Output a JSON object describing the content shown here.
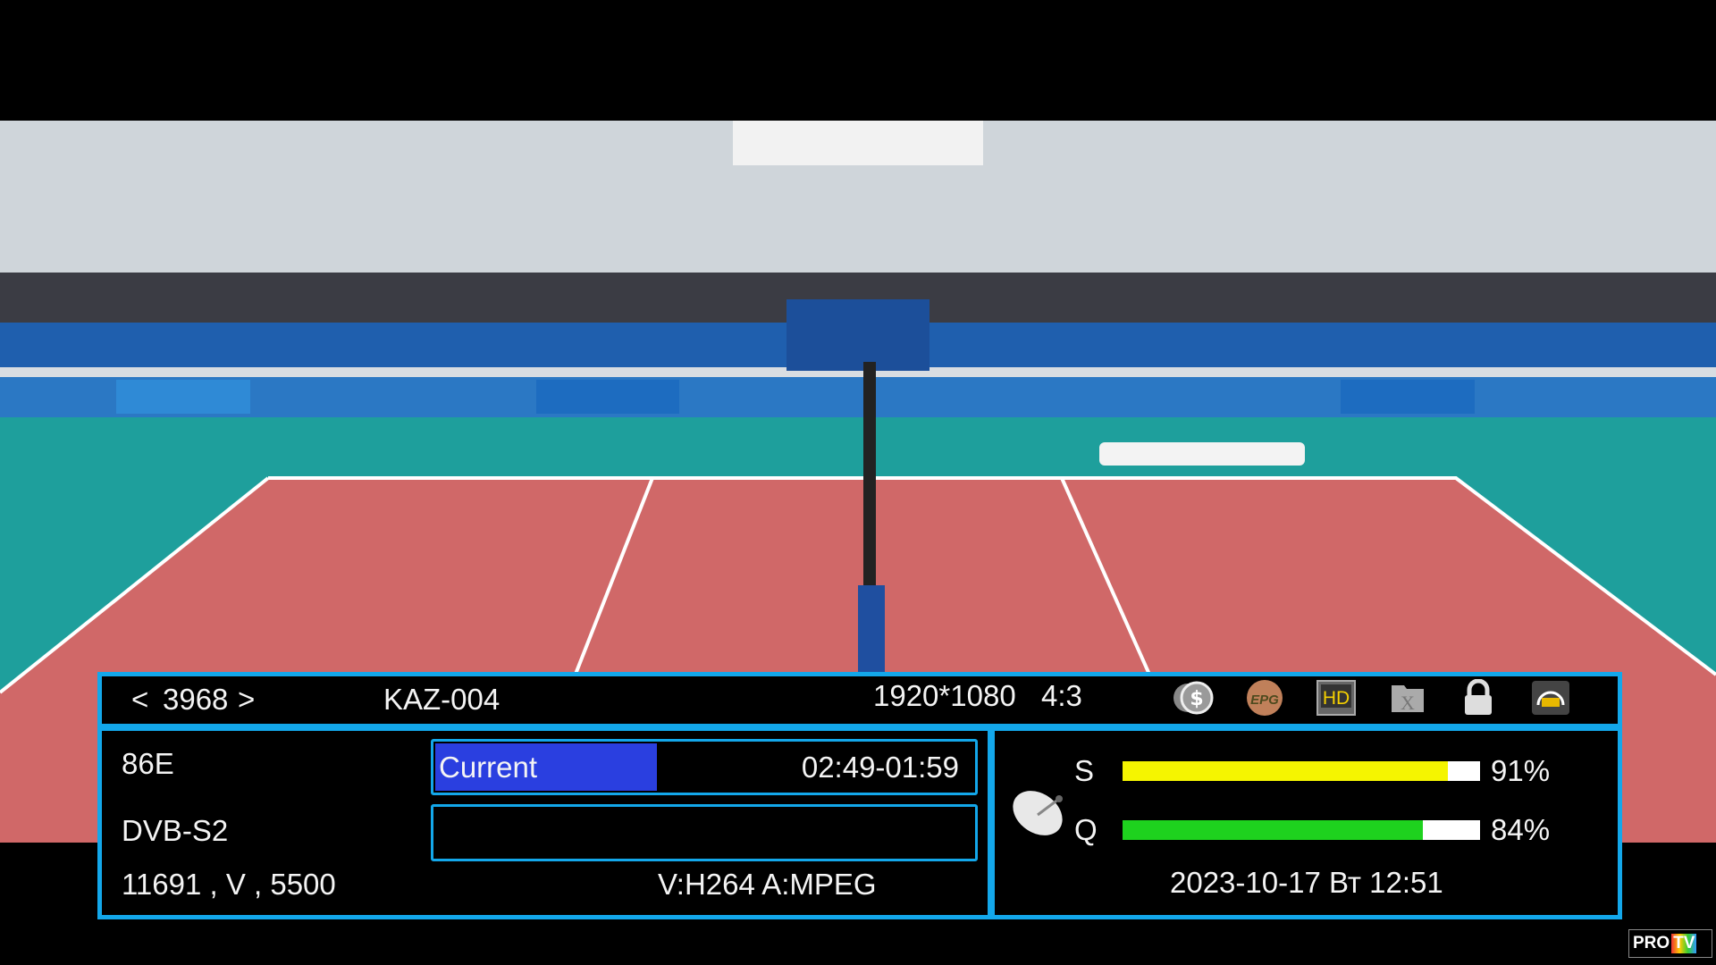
{
  "channel": {
    "nav_prev": "<",
    "number": "3968",
    "nav_next": ">",
    "name": "KAZ-004"
  },
  "video": {
    "resolution": "1920*1080",
    "aspect": "4:3"
  },
  "status_icons": [
    {
      "name": "scramble-icon"
    },
    {
      "name": "epg-icon",
      "label": "EPG"
    },
    {
      "name": "hd-icon",
      "label": "HD"
    },
    {
      "name": "folder-x-icon"
    },
    {
      "name": "lock-icon"
    },
    {
      "name": "dolby-audio-icon"
    }
  ],
  "transponder": {
    "satellite": "86E",
    "system": "DVB-S2",
    "params": "11691 , V , 5500",
    "codecs": "V:H264 A:MPEG"
  },
  "epg": {
    "current_label": "Current",
    "current_time": "02:49-01:59",
    "next_label": "",
    "progress": 0.41
  },
  "signal": {
    "strength_label": "S",
    "strength_value": "91%",
    "strength": 91,
    "strength_color": "#f5f500",
    "quality_label": "Q",
    "quality_value": "84%",
    "quality": 84,
    "quality_color": "#1ed21e"
  },
  "datetime": "2023-10-17 Вт 12:51",
  "watermark": "PRO TV NET.UA",
  "colors": {
    "accent_border": "#13a7ea",
    "current_fill": "#2a3fe0"
  }
}
